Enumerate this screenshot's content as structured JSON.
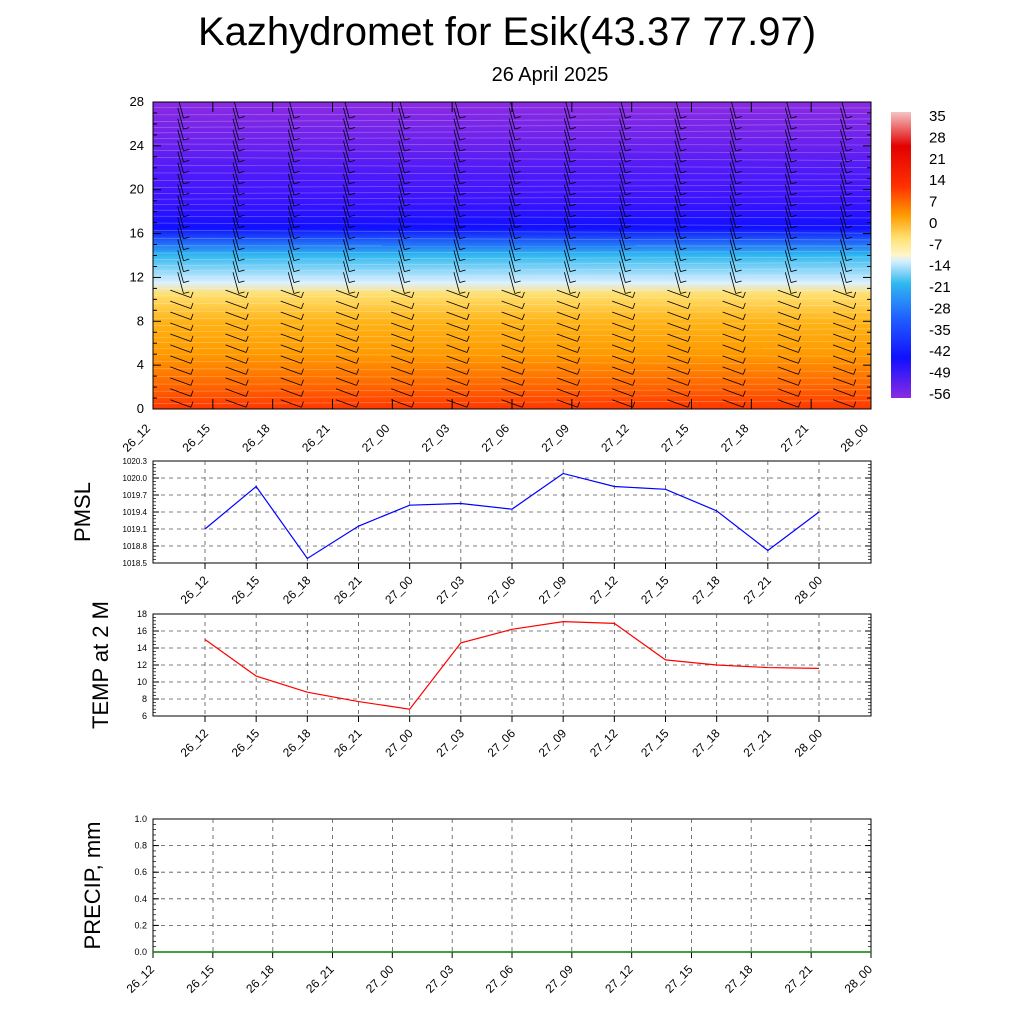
{
  "title": "Kazhydromet for Esik(43.37 77.97)",
  "subtitle": "26 April 2025",
  "colors": {
    "pmsl_line": "#0000ff",
    "temp_line": "#ff0000",
    "precip_line": "#008000",
    "grid": "#555555"
  },
  "chart_data": [
    {
      "type": "heatmap",
      "title": "",
      "xlabel": "",
      "ylabel": "",
      "categories": [
        "26_12",
        "26_15",
        "26_18",
        "26_21",
        "27_00",
        "27_03",
        "27_06",
        "27_09",
        "27_12",
        "27_15",
        "27_18",
        "27_21",
        "28_00"
      ],
      "y_ticks": [
        0,
        4,
        8,
        12,
        16,
        20,
        24,
        28
      ],
      "ylim": [
        0,
        28
      ],
      "colorbar_labels": [
        "35",
        "28",
        "21",
        "14",
        "7",
        "0",
        "-7",
        "-14",
        "-21",
        "-28",
        "-35",
        "-42",
        "-49",
        "-56"
      ],
      "temperature_profile": [
        {
          "height": 0,
          "value": 20
        },
        {
          "height": 2,
          "value": 14
        },
        {
          "height": 5,
          "value": 7
        },
        {
          "height": 8,
          "value": 3
        },
        {
          "height": 10.5,
          "value": -3
        },
        {
          "height": 11.5,
          "value": -14
        },
        {
          "height": 14,
          "value": -28
        },
        {
          "height": 16.5,
          "value": -49
        },
        {
          "height": 19,
          "value": -56
        },
        {
          "height": 22,
          "value": -58
        },
        {
          "height": 24,
          "value": -60
        },
        {
          "height": 28,
          "value": -63
        }
      ],
      "wind_barbs": "yes"
    },
    {
      "type": "line",
      "title": "",
      "xlabel": "",
      "ylabel": "PMSL",
      "categories": [
        "26_12",
        "26_15",
        "26_18",
        "26_21",
        "27_00",
        "27_03",
        "27_06",
        "27_09",
        "27_12",
        "27_15",
        "27_18",
        "27_21",
        "28_00"
      ],
      "y_ticks": [
        "1018.5",
        "1018.8",
        "1019.1",
        "1019.4",
        "1019.7",
        "1020.0",
        "1020.3"
      ],
      "ylim": [
        1018.5,
        1020.3
      ],
      "series": [
        {
          "values": [
            1019.1,
            1019.85,
            1018.58,
            1019.15,
            1019.52,
            1019.55,
            1019.45,
            1020.08,
            1019.85,
            1019.8,
            1019.42,
            1018.72,
            1019.4
          ]
        }
      ]
    },
    {
      "type": "line",
      "title": "",
      "xlabel": "",
      "ylabel": "TEMP at 2 M",
      "categories": [
        "26_12",
        "26_15",
        "26_18",
        "26_21",
        "27_00",
        "27_03",
        "27_06",
        "27_09",
        "27_12",
        "27_15",
        "27_18",
        "27_21",
        "28_00"
      ],
      "y_ticks": [
        "6",
        "8",
        "10",
        "12",
        "14",
        "16",
        "18"
      ],
      "ylim": [
        6,
        18
      ],
      "series": [
        {
          "values": [
            15.0,
            10.7,
            8.8,
            7.7,
            6.8,
            14.6,
            16.2,
            17.1,
            16.9,
            12.6,
            12.0,
            11.7,
            11.6
          ]
        }
      ]
    },
    {
      "type": "line",
      "title": "",
      "xlabel": "",
      "ylabel": "PRECIP, mm",
      "categories": [
        "26_12",
        "26_15",
        "26_18",
        "26_21",
        "27_00",
        "27_03",
        "27_06",
        "27_09",
        "27_12",
        "27_15",
        "27_18",
        "27_21",
        "28_00"
      ],
      "y_ticks": [
        "0.0",
        "0.2",
        "0.4",
        "0.6",
        "0.8",
        "1.0"
      ],
      "ylim": [
        0,
        1
      ],
      "series": [
        {
          "values": [
            0,
            0,
            0,
            0,
            0,
            0,
            0,
            0,
            0,
            0,
            0,
            0,
            0
          ]
        }
      ]
    }
  ]
}
